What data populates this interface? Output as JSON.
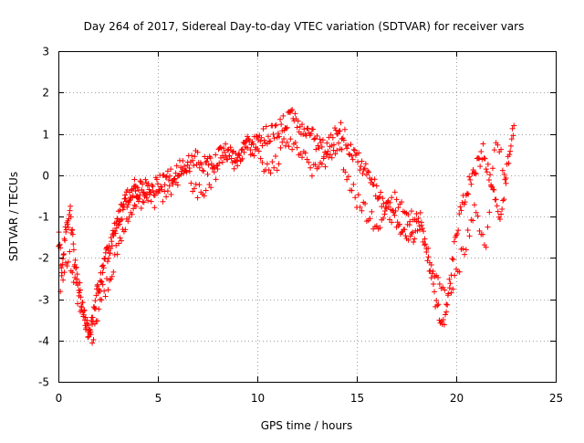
{
  "chart_data": {
    "type": "scatter",
    "title": "Day 264 of 2017, Sidereal Day-to-day VTEC variation (SDTVAR) for receiver vars",
    "xlabel": "GPS time / hours",
    "ylabel": "SDTVAR / TECUs",
    "xlim": [
      0,
      25
    ],
    "ylim": [
      -5,
      3
    ],
    "xticks": [
      0,
      5,
      10,
      15,
      20,
      25
    ],
    "yticks": [
      -5,
      -4,
      -3,
      -2,
      -1,
      0,
      1,
      2,
      3
    ],
    "xtick_labels": [
      "0",
      "5",
      "10",
      "15",
      "20",
      "25"
    ],
    "ytick_labels": [
      "-5",
      "-4",
      "-3",
      "-2",
      "-1",
      "0",
      "1",
      "2",
      "3"
    ],
    "grid": true,
    "marker": "+",
    "series": [
      {
        "name": "vars",
        "color": "#ff0000",
        "x": [
          0.0,
          0.2,
          0.4,
          0.6,
          0.8,
          1.0,
          1.2,
          1.4,
          1.6,
          1.8,
          2.0,
          2.2,
          2.4,
          2.6,
          2.8,
          3.0,
          3.2,
          3.4,
          3.6,
          3.8,
          4.0,
          4.3,
          4.6,
          5.0,
          5.4,
          5.8,
          6.2,
          6.6,
          7.0,
          7.4,
          7.8,
          8.2,
          8.6,
          9.0,
          9.4,
          9.8,
          10.2,
          10.6,
          11.0,
          11.4,
          11.8,
          12.2,
          12.6,
          13.0,
          13.4,
          13.8,
          14.2,
          14.6,
          15.0,
          15.4,
          15.8,
          16.2,
          16.6,
          17.0,
          17.4,
          17.8,
          18.2,
          18.6,
          19.0,
          19.4,
          19.8,
          20.2,
          20.6,
          21.0,
          21.4,
          21.8,
          22.2,
          22.6,
          22.9
        ],
        "y": [
          -1.5,
          -2.3,
          -1.2,
          -0.9,
          -2.0,
          -2.6,
          -3.1,
          -3.6,
          -3.9,
          -3.2,
          -2.8,
          -2.3,
          -2.0,
          -1.7,
          -1.3,
          -1.0,
          -0.9,
          -0.6,
          -0.5,
          -0.3,
          -0.4,
          -0.3,
          -0.4,
          -0.2,
          -0.1,
          0.0,
          0.2,
          0.3,
          0.4,
          0.2,
          0.3,
          0.5,
          0.6,
          0.4,
          0.7,
          0.8,
          0.9,
          1.0,
          1.1,
          1.3,
          1.4,
          1.2,
          1.0,
          0.8,
          0.6,
          0.9,
          1.1,
          0.7,
          0.4,
          0.2,
          -0.2,
          -0.6,
          -0.9,
          -1.1,
          -1.3,
          -1.5,
          -1.1,
          -2.0,
          -3.2,
          -3.6,
          -2.1,
          -0.9,
          -0.3,
          0.2,
          0.6,
          -0.4,
          -1.1,
          0.3,
          1.2
        ],
        "x2": [
          0.1,
          0.5,
          0.9,
          1.3,
          1.7,
          2.1,
          2.5,
          2.9,
          3.3,
          3.7,
          4.1,
          4.5,
          5.0,
          5.5,
          6.0,
          6.5,
          7.0,
          7.5,
          8.0,
          8.5,
          9.0,
          9.5,
          10.0,
          10.5,
          11.0,
          11.5,
          12.0,
          12.5,
          13.0,
          13.5,
          14.0,
          14.5,
          15.0,
          15.5,
          16.0,
          16.5,
          17.0,
          17.5,
          18.0,
          18.5,
          19.0,
          19.5,
          20.0,
          20.5,
          21.0,
          21.5,
          22.0,
          22.5
        ],
        "y2": [
          -2.6,
          -1.9,
          -2.8,
          -3.4,
          -4.1,
          -3.0,
          -2.6,
          -1.9,
          -1.4,
          -0.8,
          -0.7,
          -0.5,
          -0.6,
          -0.3,
          -0.2,
          0.1,
          -0.5,
          -0.2,
          0.1,
          0.5,
          0.3,
          0.7,
          0.5,
          0.2,
          0.3,
          0.9,
          0.6,
          0.3,
          0.1,
          0.4,
          0.8,
          0.0,
          -0.6,
          -0.9,
          -1.2,
          -0.8,
          -0.6,
          -0.9,
          -1.0,
          -1.7,
          -2.5,
          -3.1,
          -2.4,
          -1.6,
          -0.8,
          -1.9,
          1.0,
          -0.2
        ]
      }
    ]
  }
}
